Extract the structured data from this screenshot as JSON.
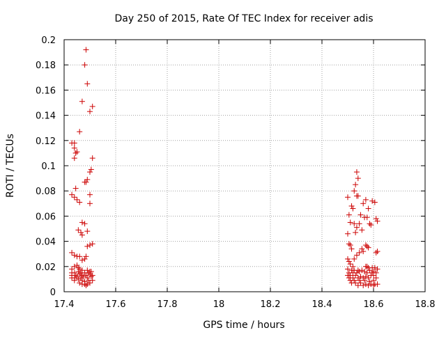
{
  "chart_data": {
    "type": "scatter",
    "title": "Day 250 of 2015, Rate Of TEC Index for receiver adis",
    "xlabel": "GPS time / hours",
    "ylabel": "ROTI / TECUs",
    "xlim": [
      17.4,
      18.8
    ],
    "ylim": [
      0,
      0.2
    ],
    "x_ticks": [
      17.4,
      17.6,
      17.8,
      18,
      18.2,
      18.4,
      18.6,
      18.8
    ],
    "x_tick_labels": [
      "17.4",
      "17.6",
      "17.8",
      "18",
      "18.2",
      "18.4",
      "18.6",
      "18.8"
    ],
    "y_ticks": [
      0,
      0.02,
      0.04,
      0.06,
      0.08,
      0.1,
      0.12,
      0.14,
      0.16,
      0.18,
      0.2
    ],
    "y_tick_labels": [
      "0",
      "0.02",
      "0.04",
      "0.06",
      "0.08",
      "0.1",
      "0.12",
      "0.14",
      "0.16",
      "0.18",
      "0.2"
    ],
    "grid": true,
    "marker": "+",
    "marker_color": "#cc0000",
    "series": [
      {
        "name": "ROTI",
        "points": [
          [
            17.485,
            0.192
          ],
          [
            17.48,
            0.18
          ],
          [
            17.49,
            0.165
          ],
          [
            17.47,
            0.151
          ],
          [
            17.51,
            0.147
          ],
          [
            17.5,
            0.143
          ],
          [
            17.46,
            0.127
          ],
          [
            17.43,
            0.118
          ],
          [
            17.44,
            0.118
          ],
          [
            17.44,
            0.114
          ],
          [
            17.45,
            0.111
          ],
          [
            17.445,
            0.11
          ],
          [
            17.44,
            0.106
          ],
          [
            17.51,
            0.106
          ],
          [
            17.505,
            0.097
          ],
          [
            17.5,
            0.095
          ],
          [
            17.49,
            0.089
          ],
          [
            17.48,
            0.087
          ],
          [
            17.485,
            0.087
          ],
          [
            17.445,
            0.082
          ],
          [
            17.5,
            0.077
          ],
          [
            17.43,
            0.077
          ],
          [
            17.44,
            0.075
          ],
          [
            17.45,
            0.073
          ],
          [
            17.46,
            0.071
          ],
          [
            17.5,
            0.07
          ],
          [
            17.47,
            0.055
          ],
          [
            17.48,
            0.054
          ],
          [
            17.455,
            0.049
          ],
          [
            17.465,
            0.047
          ],
          [
            17.49,
            0.048
          ],
          [
            17.47,
            0.045
          ],
          [
            17.51,
            0.038
          ],
          [
            17.5,
            0.037
          ],
          [
            17.49,
            0.036
          ],
          [
            17.43,
            0.031
          ],
          [
            17.44,
            0.029
          ],
          [
            17.45,
            0.028
          ],
          [
            17.46,
            0.028
          ],
          [
            17.485,
            0.028
          ],
          [
            17.48,
            0.026
          ],
          [
            17.47,
            0.025
          ],
          [
            17.44,
            0.02
          ],
          [
            17.45,
            0.021
          ],
          [
            17.455,
            0.019
          ],
          [
            17.43,
            0.018
          ],
          [
            17.46,
            0.018
          ],
          [
            17.47,
            0.017
          ],
          [
            17.49,
            0.017
          ],
          [
            17.5,
            0.016
          ],
          [
            17.43,
            0.015
          ],
          [
            17.44,
            0.015
          ],
          [
            17.455,
            0.016
          ],
          [
            17.465,
            0.015
          ],
          [
            17.48,
            0.015
          ],
          [
            17.495,
            0.015
          ],
          [
            17.505,
            0.016
          ],
          [
            17.43,
            0.013
          ],
          [
            17.445,
            0.013
          ],
          [
            17.46,
            0.014
          ],
          [
            17.47,
            0.013
          ],
          [
            17.485,
            0.013
          ],
          [
            17.5,
            0.014
          ],
          [
            17.51,
            0.013
          ],
          [
            17.43,
            0.011
          ],
          [
            17.44,
            0.011
          ],
          [
            17.45,
            0.012
          ],
          [
            17.465,
            0.011
          ],
          [
            17.475,
            0.012
          ],
          [
            17.49,
            0.011
          ],
          [
            17.505,
            0.012
          ],
          [
            17.44,
            0.009
          ],
          [
            17.455,
            0.01
          ],
          [
            17.47,
            0.009
          ],
          [
            17.48,
            0.008
          ],
          [
            17.495,
            0.009
          ],
          [
            17.51,
            0.009
          ],
          [
            17.46,
            0.007
          ],
          [
            17.47,
            0.006
          ],
          [
            17.48,
            0.006
          ],
          [
            17.49,
            0.006
          ],
          [
            17.5,
            0.007
          ],
          [
            17.485,
            0.005
          ],
          [
            18.535,
            0.095
          ],
          [
            18.54,
            0.09
          ],
          [
            18.53,
            0.085
          ],
          [
            18.525,
            0.08
          ],
          [
            18.535,
            0.076
          ],
          [
            18.54,
            0.076
          ],
          [
            18.5,
            0.075
          ],
          [
            18.57,
            0.073
          ],
          [
            18.595,
            0.072
          ],
          [
            18.605,
            0.071
          ],
          [
            18.56,
            0.07
          ],
          [
            18.515,
            0.068
          ],
          [
            18.52,
            0.066
          ],
          [
            18.58,
            0.066
          ],
          [
            18.55,
            0.061
          ],
          [
            18.505,
            0.061
          ],
          [
            18.565,
            0.059
          ],
          [
            18.575,
            0.059
          ],
          [
            18.61,
            0.058
          ],
          [
            18.615,
            0.056
          ],
          [
            18.51,
            0.055
          ],
          [
            18.525,
            0.054
          ],
          [
            18.545,
            0.054
          ],
          [
            18.585,
            0.054
          ],
          [
            18.59,
            0.053
          ],
          [
            18.535,
            0.051
          ],
          [
            18.555,
            0.049
          ],
          [
            18.53,
            0.047
          ],
          [
            18.5,
            0.046
          ],
          [
            18.505,
            0.038
          ],
          [
            18.51,
            0.037
          ],
          [
            18.57,
            0.037
          ],
          [
            18.575,
            0.036
          ],
          [
            18.58,
            0.035
          ],
          [
            18.515,
            0.034
          ],
          [
            18.555,
            0.034
          ],
          [
            18.56,
            0.032
          ],
          [
            18.615,
            0.032
          ],
          [
            18.61,
            0.031
          ],
          [
            18.545,
            0.031
          ],
          [
            18.535,
            0.029
          ],
          [
            18.5,
            0.026
          ],
          [
            18.525,
            0.026
          ],
          [
            18.505,
            0.024
          ],
          [
            18.51,
            0.022
          ],
          [
            18.52,
            0.02
          ],
          [
            18.57,
            0.02
          ],
          [
            18.575,
            0.02
          ],
          [
            18.58,
            0.019
          ],
          [
            18.595,
            0.019
          ],
          [
            18.605,
            0.019
          ],
          [
            18.615,
            0.018
          ],
          [
            18.5,
            0.018
          ],
          [
            18.515,
            0.017
          ],
          [
            18.525,
            0.017
          ],
          [
            18.54,
            0.017
          ],
          [
            18.555,
            0.017
          ],
          [
            18.585,
            0.017
          ],
          [
            18.6,
            0.016
          ],
          [
            18.505,
            0.015
          ],
          [
            18.52,
            0.015
          ],
          [
            18.535,
            0.015
          ],
          [
            18.545,
            0.016
          ],
          [
            18.565,
            0.016
          ],
          [
            18.575,
            0.015
          ],
          [
            18.595,
            0.015
          ],
          [
            18.61,
            0.015
          ],
          [
            18.5,
            0.013
          ],
          [
            18.51,
            0.013
          ],
          [
            18.53,
            0.013
          ],
          [
            18.55,
            0.012
          ],
          [
            18.57,
            0.012
          ],
          [
            18.59,
            0.013
          ],
          [
            18.6,
            0.013
          ],
          [
            18.505,
            0.011
          ],
          [
            18.52,
            0.011
          ],
          [
            18.54,
            0.011
          ],
          [
            18.56,
            0.011
          ],
          [
            18.58,
            0.011
          ],
          [
            18.61,
            0.011
          ],
          [
            18.51,
            0.009
          ],
          [
            18.525,
            0.009
          ],
          [
            18.545,
            0.009
          ],
          [
            18.565,
            0.009
          ],
          [
            18.585,
            0.008
          ],
          [
            18.6,
            0.009
          ],
          [
            18.515,
            0.007
          ],
          [
            18.53,
            0.007
          ],
          [
            18.55,
            0.007
          ],
          [
            18.57,
            0.006
          ],
          [
            18.59,
            0.006
          ],
          [
            18.605,
            0.006
          ],
          [
            18.615,
            0.006
          ],
          [
            18.54,
            0.005
          ],
          [
            18.56,
            0.005
          ],
          [
            18.58,
            0.005
          ],
          [
            18.6,
            0.005
          ]
        ]
      }
    ]
  }
}
